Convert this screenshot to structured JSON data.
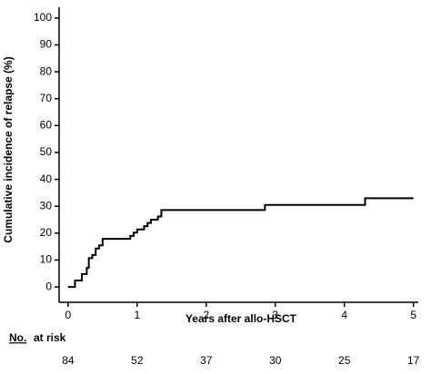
{
  "chart_data": {
    "type": "step",
    "x_label": "Years after allo-HSCT",
    "y_label": "Cumulative incidence of relapse (%)",
    "x": [
      0,
      0.1,
      0.2,
      0.27,
      0.3,
      0.35,
      0.4,
      0.45,
      0.5,
      0.9,
      0.95,
      1.0,
      1.1,
      1.15,
      1.2,
      1.3,
      1.35,
      2.85,
      4.3,
      5.0
    ],
    "values": [
      0,
      2.4,
      4.8,
      7.1,
      10.7,
      11.9,
      14.3,
      15.5,
      17.9,
      19,
      20.2,
      21.4,
      22.6,
      23.8,
      25,
      26.2,
      28.6,
      30.5,
      33,
      33
    ],
    "color": "#000000",
    "xlim": [
      -0.13,
      5.07
    ],
    "xticks": [
      0,
      1,
      2,
      3,
      4,
      5
    ],
    "ylim": [
      -5.7,
      104
    ],
    "yticks": [
      0,
      10,
      20,
      30,
      40,
      50,
      60,
      70,
      80,
      90,
      100
    ],
    "risk_label_no": "No.",
    "risk_label": "at risk",
    "at_risk": [
      84,
      52,
      37,
      30,
      25,
      17
    ]
  }
}
